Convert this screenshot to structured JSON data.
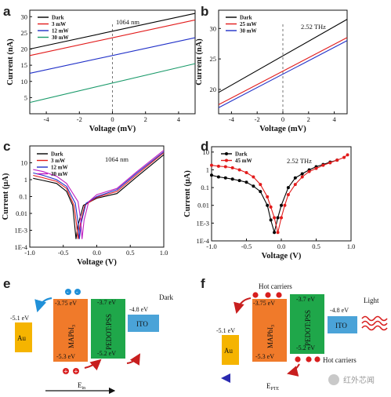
{
  "chart_data": [
    {
      "panel": "a",
      "type": "line",
      "annotation": "1064 nm",
      "xlabel": "Voltage (mV)",
      "ylabel": "Current (nA)",
      "xlim": [
        -5,
        5
      ],
      "ylim": [
        0,
        32
      ],
      "xticks": [
        -4,
        -2,
        0,
        2,
        4
      ],
      "yticks": [
        5,
        10,
        15,
        20,
        25,
        30
      ],
      "x": [
        -5,
        5
      ],
      "series": [
        {
          "name": "Dark",
          "color": "#000000",
          "values": [
            20,
            31
          ]
        },
        {
          "name": "3 mW",
          "color": "#e21b1b",
          "values": [
            18,
            29
          ]
        },
        {
          "name": "12 mW",
          "color": "#2030c8",
          "values": [
            12.5,
            23.5
          ]
        },
        {
          "name": "30 mW",
          "color": "#1a9a6a",
          "values": [
            3.5,
            15.5
          ]
        }
      ]
    },
    {
      "panel": "b",
      "type": "line",
      "annotation": "2.52 THz",
      "xlabel": "Voltage (mV)",
      "ylabel": "Current (nA)",
      "xlim": [
        -5,
        5
      ],
      "ylim": [
        16,
        33
      ],
      "xticks": [
        -4,
        -2,
        0,
        2,
        4
      ],
      "yticks": [
        20,
        25,
        30
      ],
      "x": [
        -5,
        5
      ],
      "series": [
        {
          "name": "Dark",
          "color": "#000000",
          "values": [
            19.5,
            31.5
          ]
        },
        {
          "name": "25 mW",
          "color": "#e21b1b",
          "values": [
            17.5,
            28.5
          ]
        },
        {
          "name": "30 mW",
          "color": "#2030c8",
          "values": [
            17.0,
            28.0
          ]
        }
      ]
    },
    {
      "panel": "c",
      "type": "line",
      "annotation": "1064 nm",
      "xlabel": "Voltage (V)",
      "ylabel": "Current (μA)",
      "xlim": [
        -1.0,
        1.0
      ],
      "ylog": true,
      "ylim": [
        0.0001,
        100
      ],
      "xticks": [
        -1.0,
        -0.5,
        0.0,
        0.5,
        1.0
      ],
      "xticklabels": [
        "-1.0",
        "-0.5",
        "0.0",
        "0.5",
        "1.0"
      ],
      "yticks": [
        0.0001,
        0.001,
        0.01,
        0.1,
        1,
        10
      ],
      "yticklabels": [
        "1E-4",
        "1E-3",
        "0.01",
        "0.1",
        "1",
        "10"
      ],
      "series": [
        {
          "name": "Dark",
          "color": "#000000",
          "x": [
            -0.95,
            -0.8,
            -0.6,
            -0.45,
            -0.36,
            -0.33,
            -0.31,
            -0.28,
            -0.2,
            0,
            0.3,
            0.6,
            1.0
          ],
          "values": [
            1.2,
            0.9,
            0.6,
            0.2,
            0.03,
            0.002,
            0.0003,
            0.002,
            0.03,
            0.08,
            0.15,
            1.5,
            30
          ]
        },
        {
          "name": "3 mW",
          "color": "#e21b1b",
          "x": [
            -0.95,
            -0.8,
            -0.6,
            -0.45,
            -0.34,
            -0.3,
            -0.28,
            -0.25,
            -0.18,
            0,
            0.3,
            0.6,
            1.0
          ],
          "values": [
            1.8,
            1.3,
            0.8,
            0.3,
            0.03,
            0.002,
            0.0003,
            0.002,
            0.03,
            0.09,
            0.2,
            2,
            40
          ]
        },
        {
          "name": "12 mW",
          "color": "#2030c8",
          "x": [
            -0.95,
            -0.8,
            -0.6,
            -0.45,
            -0.32,
            -0.28,
            -0.26,
            -0.23,
            -0.16,
            0,
            0.3,
            0.6,
            1.0
          ],
          "values": [
            2.5,
            1.8,
            1.0,
            0.4,
            0.04,
            0.003,
            0.0003,
            0.003,
            0.04,
            0.1,
            0.25,
            2.5,
            45
          ]
        },
        {
          "name": "30 mW",
          "color": "#c020c0",
          "x": [
            -0.95,
            -0.8,
            -0.6,
            -0.45,
            -0.28,
            -0.24,
            -0.22,
            -0.19,
            -0.12,
            0,
            0.3,
            0.6,
            1.0
          ],
          "values": [
            4,
            3,
            1.6,
            0.6,
            0.05,
            0.004,
            0.0003,
            0.004,
            0.05,
            0.13,
            0.3,
            3,
            55
          ]
        }
      ]
    },
    {
      "panel": "d",
      "type": "line",
      "annotation": "2.52 THz",
      "xlabel": "Voltage (V)",
      "ylabel": "Current (μA)",
      "xlim": [
        -1.0,
        1.0
      ],
      "ylog": true,
      "ylim": [
        0.0001,
        20
      ],
      "xticks": [
        -1.0,
        -0.5,
        0.0,
        0.5,
        1.0
      ],
      "xticklabels": [
        "-1.0",
        "-0.5",
        "0.0",
        "0.5",
        "1.0"
      ],
      "yticks": [
        0.0001,
        0.001,
        0.01,
        0.1,
        1,
        10
      ],
      "yticklabels": [
        "1E-4",
        "1E-3",
        "0.01",
        "0.1",
        "1",
        "10"
      ],
      "series": [
        {
          "name": "Dark",
          "color": "#000000",
          "x": [
            -1.0,
            -0.9,
            -0.8,
            -0.7,
            -0.6,
            -0.5,
            -0.4,
            -0.3,
            -0.2,
            -0.15,
            -0.1,
            -0.05,
            0.0,
            0.1,
            0.2,
            0.3,
            0.4,
            0.5,
            0.6,
            0.7,
            0.8
          ],
          "values": [
            0.5,
            0.4,
            0.35,
            0.3,
            0.25,
            0.2,
            0.12,
            0.06,
            0.01,
            0.0015,
            0.0003,
            0.002,
            0.01,
            0.1,
            0.35,
            0.6,
            1.0,
            1.5,
            2.0,
            2.7,
            3.5
          ]
        },
        {
          "name": "45 mW",
          "color": "#e21b1b",
          "x": [
            -1.0,
            -0.9,
            -0.8,
            -0.7,
            -0.6,
            -0.5,
            -0.4,
            -0.3,
            -0.2,
            -0.15,
            -0.1,
            -0.05,
            0.0,
            0.05,
            0.1,
            0.2,
            0.3,
            0.4,
            0.5,
            0.6,
            0.7,
            0.8,
            0.9,
            0.95
          ],
          "values": [
            1.8,
            1.6,
            1.5,
            1.3,
            1.0,
            0.7,
            0.4,
            0.15,
            0.03,
            0.008,
            0.002,
            0.0003,
            0.002,
            0.01,
            0.04,
            0.15,
            0.4,
            0.8,
            1.2,
            1.8,
            2.5,
            3.5,
            5,
            7
          ]
        }
      ]
    }
  ],
  "labels": {
    "panel_a": "a",
    "panel_b": "b",
    "panel_c": "c",
    "panel_d": "d",
    "panel_e": "e",
    "panel_f": "f"
  },
  "diagram_e": {
    "au_level": "-5.1 eV",
    "au_label": "Au",
    "mapbi_top": "-3.75 eV",
    "mapbi_bottom": "-5.3 eV",
    "mapbi_label": "MAPbI",
    "pedot_top": "-3.7 eV",
    "pedot_bottom": "-5.2 eV",
    "pedot_label": "PEDOT:PSS",
    "ito_level": "-4.8 eV",
    "ito_label": "ITO",
    "condition": "Dark",
    "field_label": "E",
    "field_sub": "in",
    "colors": {
      "mapbi": "#f07a2a",
      "pedot": "#1fa74a",
      "au": "#f5b400",
      "ito": "#4aa3d8",
      "hole": "#d81e1e",
      "electron": "#2090d8"
    }
  },
  "diagram_f": {
    "au_level": "-5.1 eV",
    "au_label": "Au",
    "mapbi_top": "-3.75 eV",
    "mapbi_bottom": "-5.3 eV",
    "mapbi_label": "MAPbI",
    "pedot_top": "-3.7 eV",
    "pedot_bottom": "-5.2 eV",
    "pedot_label": "PEDOT:PSS",
    "ito_level": "-4.8 eV",
    "ito_label": "ITO",
    "condition": "Light",
    "hot_top": "Hot carriers",
    "hot_bottom": "Hot carriers",
    "field_label": "E",
    "field_sub": "PTE",
    "watermark": "红外芯闻",
    "colors": {
      "mapbi": "#f07a2a",
      "pedot": "#1fa74a",
      "au": "#f5b400",
      "ito": "#4aa3d8",
      "hole": "#d81e1e",
      "arrow": "#2a2ab0"
    }
  }
}
